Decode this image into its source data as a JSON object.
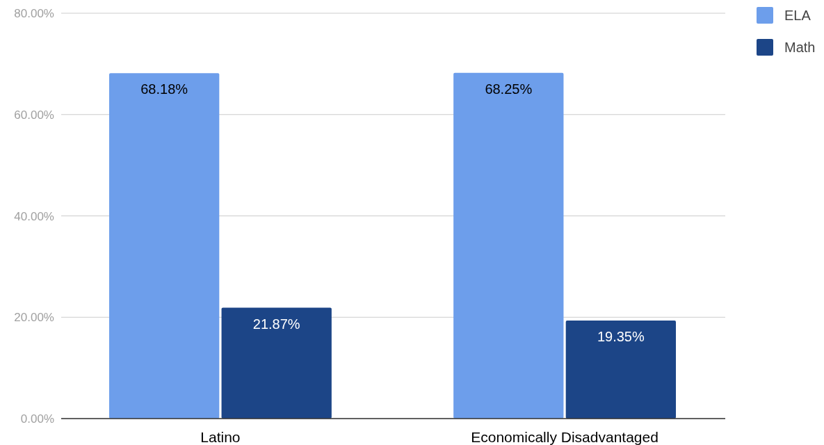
{
  "chart_data": {
    "type": "bar",
    "categories": [
      "Latino",
      "Economically Disadvantaged"
    ],
    "series": [
      {
        "name": "ELA",
        "color": "#6d9eeb",
        "values": [
          68.18,
          68.25
        ],
        "value_labels": [
          "68.18%",
          "68.25%"
        ]
      },
      {
        "name": "Math",
        "color": "#1c4587",
        "values": [
          21.87,
          19.35
        ],
        "value_labels": [
          "21.87%",
          "19.35%"
        ]
      }
    ],
    "ylim": [
      0,
      80
    ],
    "yticks": [
      {
        "value": 0,
        "label": "0.00%"
      },
      {
        "value": 20,
        "label": "20.00%"
      },
      {
        "value": 40,
        "label": "40.00%"
      },
      {
        "value": 60,
        "label": "60.00%"
      },
      {
        "value": 80,
        "label": "80.00%"
      }
    ],
    "grid": "y",
    "legend": "top right"
  }
}
